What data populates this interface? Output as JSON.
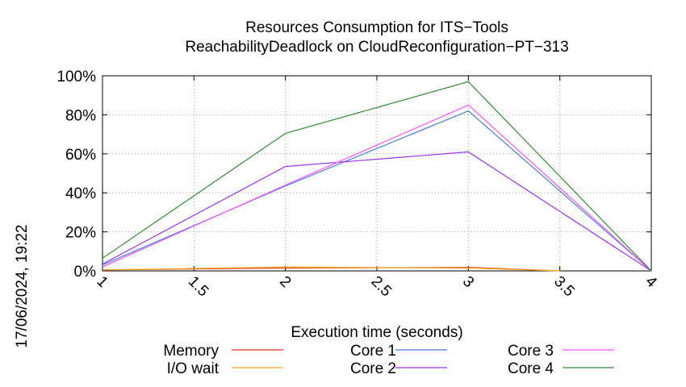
{
  "chart_data": {
    "type": "line",
    "title": "Resources Consumption for ITS−Tools",
    "subtitle": "ReachabilityDeadlock on CloudReconfiguration−PT−313",
    "xlabel": "Execution time (seconds)",
    "ylabel": "",
    "side_label": "17/06/2024, 19:22",
    "xlim": [
      1,
      4
    ],
    "ylim": [
      0,
      100
    ],
    "x_ticks": [
      "1",
      "1.5",
      "2",
      "2.5",
      "3",
      "3.5",
      "4"
    ],
    "y_ticks": [
      "0%",
      "20%",
      "40%",
      "60%",
      "80%",
      "100%"
    ],
    "grid": true,
    "legend_position": "bottom",
    "series": [
      {
        "name": "Memory",
        "color": "#e8331c",
        "x": [
          1,
          2,
          3,
          3.5
        ],
        "y": [
          0.5,
          1.5,
          1.8,
          0
        ]
      },
      {
        "name": "I/O wait",
        "color": "#f5a623",
        "x": [
          1,
          2,
          3,
          3.5
        ],
        "y": [
          0.5,
          2.0,
          1.5,
          0
        ]
      },
      {
        "name": "Core 1",
        "color": "#4a7fd4",
        "x": [
          1,
          2,
          3,
          4
        ],
        "y": [
          3,
          43.5,
          82,
          0
        ]
      },
      {
        "name": "Core 2",
        "color": "#9933ee",
        "x": [
          1,
          2,
          3,
          4
        ],
        "y": [
          3.5,
          53.5,
          61,
          0
        ]
      },
      {
        "name": "Core 3",
        "color": "#ff55ff",
        "x": [
          1,
          2,
          3,
          4
        ],
        "y": [
          2,
          44,
          85,
          0
        ]
      },
      {
        "name": "Core 4",
        "color": "#338833",
        "x": [
          1,
          2,
          3,
          4
        ],
        "y": [
          6.5,
          70.5,
          97,
          0
        ]
      }
    ]
  }
}
